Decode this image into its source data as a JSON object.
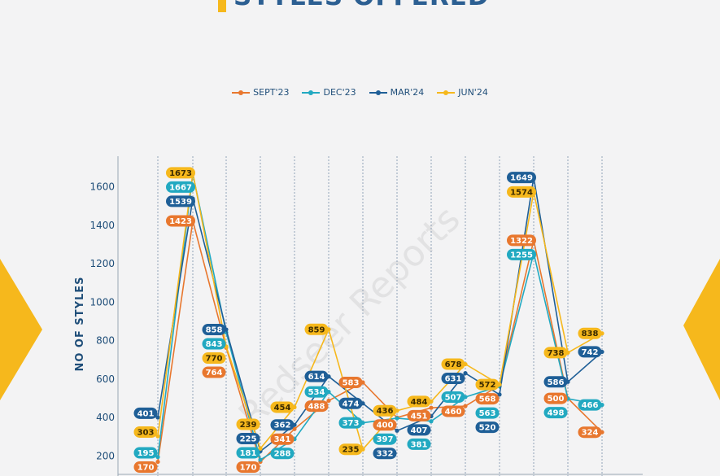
{
  "page": {
    "title": "STYLES OFFERED",
    "watermark": "Redseer Reports"
  },
  "colors": {
    "accent": "#f6b81c",
    "title": "#2c5f92",
    "series": [
      "#e8772e",
      "#22a9c1",
      "#1f5f97",
      "#f6b81c"
    ]
  },
  "chart_data": {
    "type": "line",
    "title": "STYLES OFFERED",
    "xlabel": "",
    "ylabel": "NO OF STYLES",
    "ylim": [
      130,
      1700
    ],
    "y_ticks": [
      200,
      400,
      600,
      800,
      1000,
      1200,
      1400,
      1600
    ],
    "grid": "vertical dashed lines between categories",
    "legend": "top-center",
    "x": [
      1,
      2,
      3,
      4,
      5,
      6,
      7,
      8,
      9,
      10,
      11,
      12,
      13,
      14
    ],
    "series": [
      {
        "name": "SEPT'23",
        "color": "#e8772e",
        "values": [
          170,
          1423,
          764,
          170,
          341,
          488,
          583,
          400,
          451,
          460,
          568,
          1322,
          500,
          324
        ]
      },
      {
        "name": "DEC'23",
        "color": "#22a9c1",
        "values": [
          195,
          1667,
          843,
          181,
          288,
          534,
          373,
          397,
          381,
          507,
          563,
          1255,
          498,
          466
        ]
      },
      {
        "name": "MAR'24",
        "color": "#1f5f97",
        "values": [
          401,
          1539,
          858,
          225,
          362,
          614,
          474,
          332,
          407,
          631,
          520,
          1649,
          586,
          742
        ]
      },
      {
        "name": "JUN'24",
        "color": "#f6b81c",
        "values": [
          303,
          1673,
          770,
          239,
          454,
          859,
          235,
          436,
          484,
          678,
          572,
          1574,
          738,
          838
        ]
      }
    ]
  }
}
